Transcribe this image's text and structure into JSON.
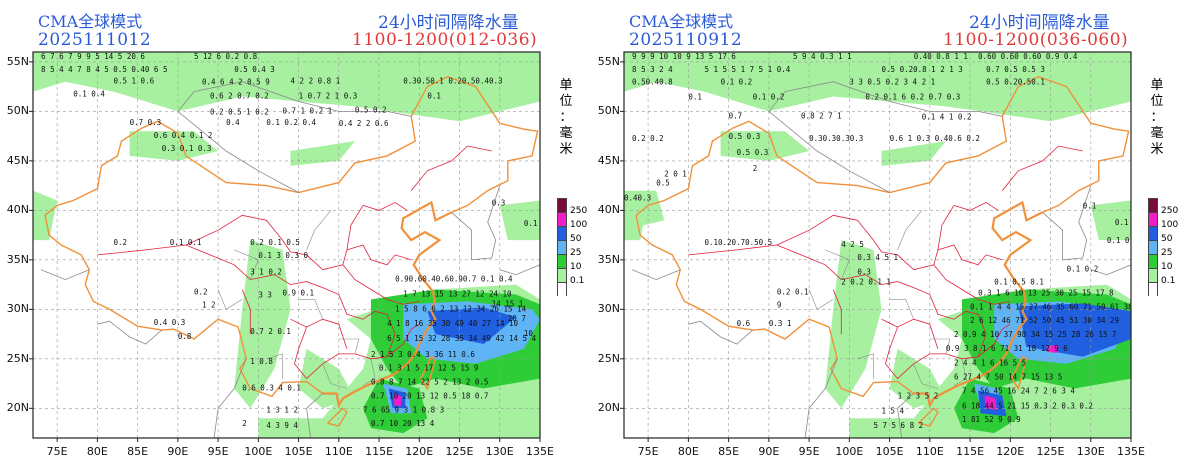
{
  "panels": [
    {
      "model": "CMA全球模式",
      "init": "2025111012",
      "title": "24小时间隔降水量",
      "period": "1100-1200(012-036)",
      "unit": "单位：毫米"
    },
    {
      "model": "CMA全球模式",
      "init": "2025110912",
      "title": "24小时间隔降水量",
      "period": "1100-1200(036-060)",
      "unit": "单位：毫米"
    }
  ],
  "axes": {
    "lat_labels": [
      "55N",
      "50N",
      "45N",
      "40N",
      "35N",
      "30N",
      "25N",
      "20N"
    ],
    "lon_labels": [
      "75E",
      "80E",
      "85E",
      "90E",
      "95E",
      "100E",
      "105E",
      "110E",
      "115E",
      "120E",
      "125E",
      "130E",
      "135E"
    ]
  },
  "legend": {
    "levels": [
      "250",
      "100",
      "50",
      "25",
      "10",
      "0.1"
    ],
    "colors": [
      "#7a0a3c",
      "#f01cc8",
      "#1f5fe0",
      "#5fb4f5",
      "#2ecc36",
      "#a6f0a0",
      "#ffffff"
    ]
  },
  "colors": {
    "light_green": "#a6f0a0",
    "green": "#2ecc36",
    "light_blue": "#5fb4f5",
    "blue": "#1f5fe0",
    "magenta": "#f01cc8",
    "border_orange": "#f0913a",
    "province_red": "#e0203a",
    "grid_gray": "#9a9a9a"
  }
}
